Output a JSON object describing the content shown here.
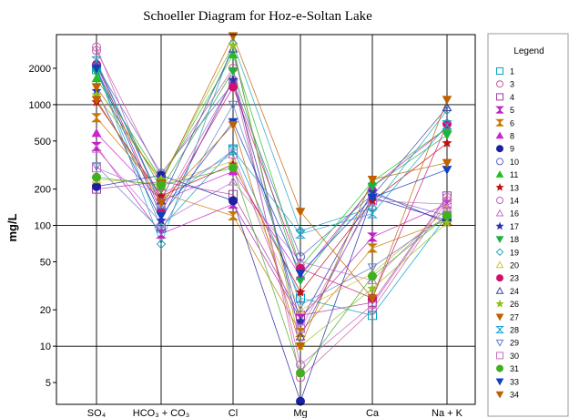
{
  "chart_data": {
    "type": "line",
    "title": "Schoeller Diagram for Hoz-e-Soltan Lake",
    "xlabel": "",
    "ylabel": "mg/L",
    "y_scale": "log",
    "ylim": [
      3.3,
      3800
    ],
    "y_ticks": [
      5,
      10,
      20,
      50,
      100,
      200,
      500,
      1000,
      2000
    ],
    "categories": [
      "SO₄",
      "HCO₃ + CO₃",
      "Cl",
      "Mg",
      "Ca",
      "Na + K"
    ],
    "grid": true,
    "legend": {
      "title": "Legend",
      "position": "right"
    },
    "series": [
      {
        "name": "1",
        "color": "#00a2c8",
        "marker": "square",
        "filled": false,
        "values": [
          1950,
          95,
          430,
          25,
          18,
          120
        ]
      },
      {
        "name": "3",
        "color": "#c85a9a",
        "marker": "circle",
        "filled": false,
        "values": [
          2800,
          250,
          2000,
          5.5,
          20,
          160
        ]
      },
      {
        "name": "4",
        "color": "#a03ca0",
        "marker": "square",
        "filled": false,
        "values": [
          200,
          230,
          180,
          18,
          23,
          175
        ]
      },
      {
        "name": "5",
        "color": "#c020c0",
        "marker": "hourglass",
        "filled": true,
        "values": [
          450,
          85,
          150,
          17,
          80,
          150
        ]
      },
      {
        "name": "6",
        "color": "#c87800",
        "marker": "hourglass",
        "filled": true,
        "values": [
          780,
          185,
          120,
          13,
          65,
          110
        ]
      },
      {
        "name": "8",
        "color": "#d020d0",
        "marker": "triangle-up",
        "filled": true,
        "values": [
          580,
          160,
          280,
          38,
          210,
          640
        ]
      },
      {
        "name": "9",
        "color": "#1a20a0",
        "marker": "circle",
        "filled": true,
        "values": [
          210,
          260,
          160,
          3.5,
          170,
          110
        ]
      },
      {
        "name": "10",
        "color": "#6060c0",
        "marker": "circle",
        "filled": false,
        "values": [
          2100,
          270,
          1500,
          55,
          180,
          120
        ]
      },
      {
        "name": "11",
        "color": "#20c020",
        "marker": "triangle-up",
        "filled": true,
        "values": [
          1650,
          240,
          2600,
          45,
          230,
          640
        ]
      },
      {
        "name": "13",
        "color": "#c01010",
        "marker": "star",
        "filled": true,
        "values": [
          1050,
          175,
          320,
          28,
          160,
          480
        ]
      },
      {
        "name": "14",
        "color": "#c060c0",
        "marker": "circle",
        "filled": false,
        "values": [
          3000,
          140,
          1600,
          7,
          22,
          170
        ]
      },
      {
        "name": "16",
        "color": "#c070d0",
        "marker": "triangle-up",
        "filled": false,
        "values": [
          430,
          105,
          230,
          50,
          35,
          140
        ]
      },
      {
        "name": "17",
        "color": "#3030b0",
        "marker": "star",
        "filled": true,
        "values": [
          1300,
          110,
          1600,
          16,
          190,
          105
        ]
      },
      {
        "name": "18",
        "color": "#20b040",
        "marker": "triangle-down",
        "filled": true,
        "values": [
          1850,
          200,
          1900,
          35,
          210,
          560
        ]
      },
      {
        "name": "19",
        "color": "#20a0c0",
        "marker": "diamond",
        "filled": false,
        "values": [
          2000,
          70,
          3200,
          90,
          140,
          900
        ]
      },
      {
        "name": "20",
        "color": "#d0c040",
        "marker": "triangle-up",
        "filled": false,
        "values": [
          240,
          220,
          340,
          20,
          40,
          135
        ]
      },
      {
        "name": "23",
        "color": "#d01070",
        "marker": "circle",
        "filled": true,
        "values": [
          2150,
          130,
          1400,
          44,
          25,
          690
        ]
      },
      {
        "name": "24",
        "color": "#4040a0",
        "marker": "triangle-up",
        "filled": false,
        "values": [
          2200,
          160,
          2900,
          12,
          175,
          950
        ]
      },
      {
        "name": "26",
        "color": "#90c020",
        "marker": "star",
        "filled": true,
        "values": [
          1200,
          240,
          3100,
          10,
          30,
          105
        ]
      },
      {
        "name": "27",
        "color": "#c06000",
        "marker": "triangle-down",
        "filled": true,
        "values": [
          1400,
          225,
          3700,
          130,
          25,
          1100
        ]
      },
      {
        "name": "28",
        "color": "#20a0d0",
        "marker": "hourglass",
        "filled": false,
        "values": [
          2300,
          150,
          420,
          85,
          125,
          680
        ]
      },
      {
        "name": "29",
        "color": "#6080c0",
        "marker": "triangle-down",
        "filled": false,
        "values": [
          310,
          90,
          1000,
          22,
          45,
          120
        ]
      },
      {
        "name": "30",
        "color": "#c070c0",
        "marker": "square",
        "filled": false,
        "values": [
          300,
          180,
          390,
          14,
          160,
          150
        ]
      },
      {
        "name": "31",
        "color": "#40b020",
        "marker": "circle",
        "filled": true,
        "values": [
          250,
          215,
          300,
          6,
          38,
          120
        ]
      },
      {
        "name": "33",
        "color": "#1040c0",
        "marker": "triangle-down",
        "filled": true,
        "values": [
          2000,
          120,
          720,
          40,
          170,
          290
        ]
      },
      {
        "name": "34",
        "color": "#c06000",
        "marker": "triangle-down",
        "filled": true,
        "values": [
          1100,
          155,
          680,
          10,
          240,
          330
        ]
      }
    ]
  }
}
